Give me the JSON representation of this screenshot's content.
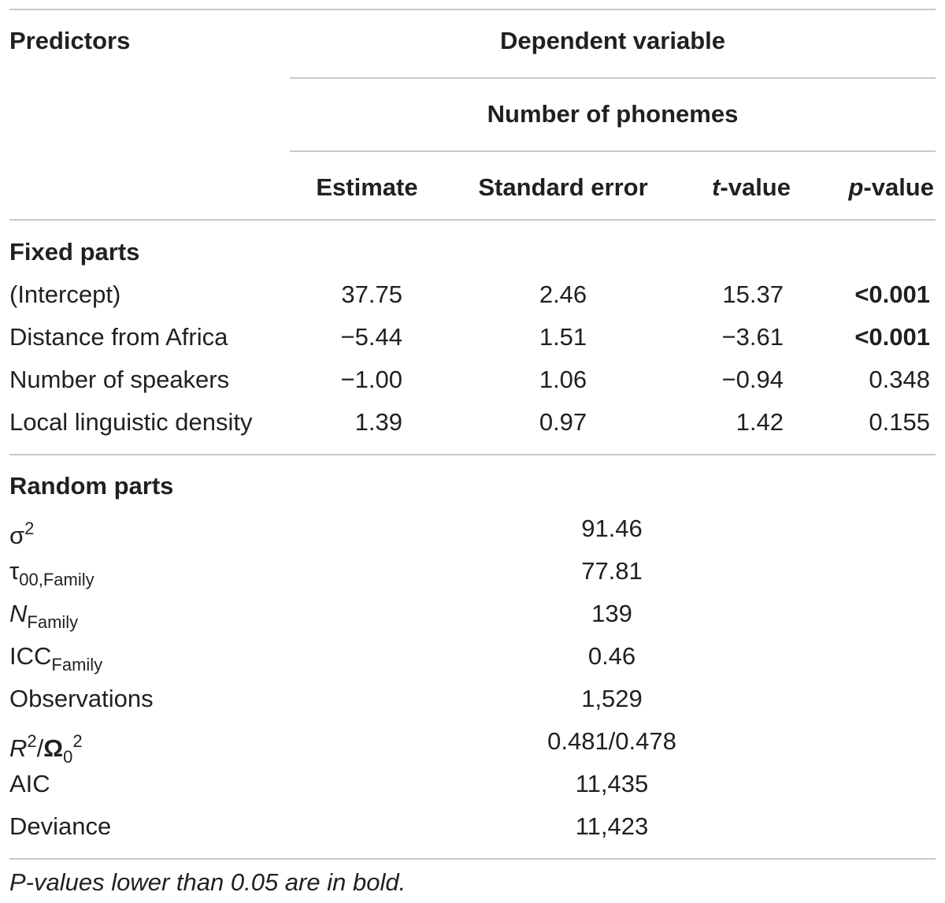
{
  "header": {
    "predictors": "Predictors",
    "dependent_variable": "Dependent variable",
    "outcome": "Number of phonemes",
    "columns": {
      "estimate": "Estimate",
      "standard_error": "Standard error",
      "t_italic": "t",
      "t_rest": "-value",
      "p_italic": "p",
      "p_rest": "-value"
    }
  },
  "fixed": {
    "title": "Fixed parts",
    "rows": [
      {
        "label": "(Intercept)",
        "estimate": "37.75",
        "se": "2.46",
        "t": "15.37",
        "p": "<0.001"
      },
      {
        "label": "Distance from Africa",
        "estimate": "−5.44",
        "se": "1.51",
        "t": "−3.61",
        "p": "<0.001"
      },
      {
        "label": "Number of speakers",
        "estimate": "−1.00",
        "se": "1.06",
        "t": "−0.94",
        "p": "0.348"
      },
      {
        "label": "Local linguistic density",
        "estimate": "1.39",
        "se": "0.97",
        "t": "1.42",
        "p": "0.155"
      }
    ]
  },
  "random": {
    "title": "Random parts",
    "sigma": {
      "symbol": "σ",
      "sup": "2",
      "value": "91.46"
    },
    "tau": {
      "symbol": "τ",
      "sub": "00,Family",
      "value": "77.81"
    },
    "n_family": {
      "symbol": "N",
      "sub": "Family",
      "value": "139"
    },
    "icc": {
      "symbol": "ICC",
      "sub": "Family",
      "value": "0.46"
    },
    "observations": {
      "label": "Observations",
      "value": "1,529"
    },
    "r2": {
      "r": "R",
      "sup1": "2",
      "slash": "/",
      "omega": "Ω",
      "sub": "0",
      "sup2": "2",
      "value": "0.481/0.478"
    },
    "aic": {
      "label": "AIC",
      "value": "11,435"
    },
    "deviance": {
      "label": "Deviance",
      "value": "11,423"
    }
  },
  "footnote": "P-values lower than 0.05 are in bold."
}
